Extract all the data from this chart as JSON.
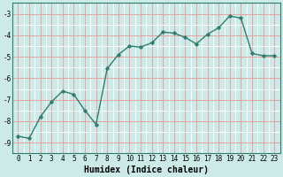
{
  "x": [
    0,
    1,
    2,
    3,
    4,
    5,
    6,
    7,
    8,
    9,
    10,
    11,
    12,
    13,
    14,
    15,
    16,
    17,
    18,
    19,
    20,
    21,
    22,
    23
  ],
  "y": [
    -8.7,
    -8.8,
    -7.8,
    -7.1,
    -6.6,
    -6.75,
    -7.5,
    -8.15,
    -5.55,
    -4.9,
    -4.5,
    -4.55,
    -4.35,
    -3.85,
    -3.9,
    -4.1,
    -4.4,
    -3.95,
    -3.65,
    -3.1,
    -3.2,
    -4.85,
    -4.95,
    -4.95
  ],
  "xlabel": "Humidex (Indice chaleur)",
  "line_color": "#2e7d6e",
  "marker": "D",
  "marker_size": 1.8,
  "line_width": 1.0,
  "ylim": [
    -9.5,
    -2.5
  ],
  "xlim": [
    -0.5,
    23.5
  ],
  "yticks": [
    -9,
    -8,
    -7,
    -6,
    -5,
    -4,
    -3
  ],
  "xticks": [
    0,
    1,
    2,
    3,
    4,
    5,
    6,
    7,
    8,
    9,
    10,
    11,
    12,
    13,
    14,
    15,
    16,
    17,
    18,
    19,
    20,
    21,
    22,
    23
  ],
  "bg_color": "#cceae7",
  "grid_major_color": "#e8a0a0",
  "grid_minor_color": "#ffffff",
  "tick_fontsize": 5.5,
  "xlabel_fontsize": 7
}
